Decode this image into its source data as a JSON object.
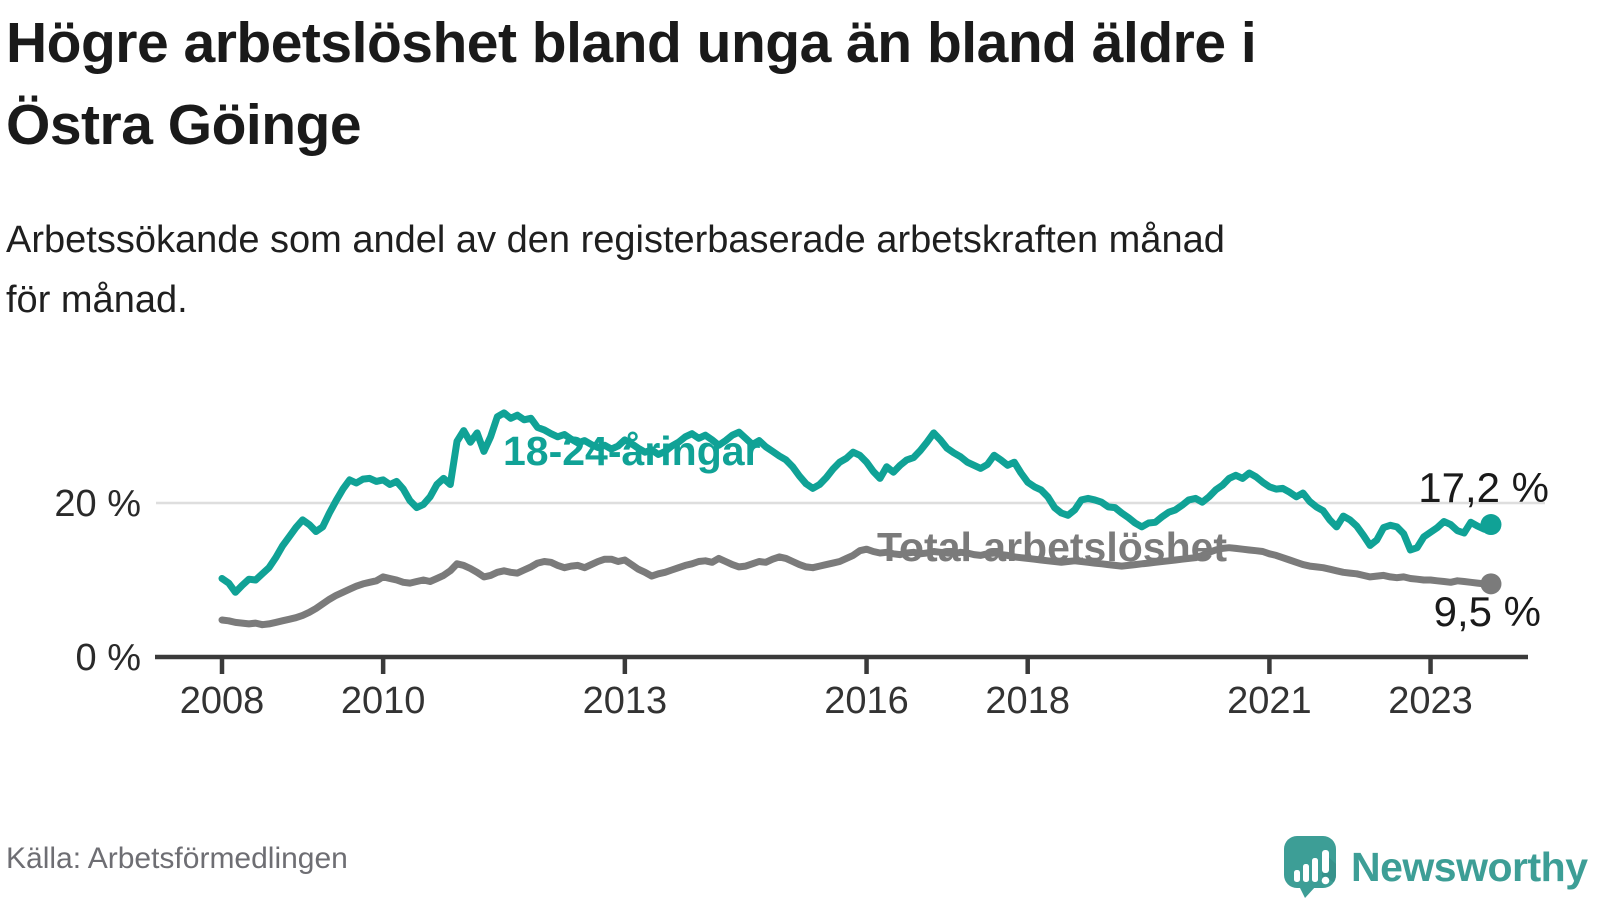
{
  "chart_data": {
    "type": "line",
    "title": "Högre arbetslöshet bland unga än bland äldre i Östra Göinge",
    "subtitle": "Arbetssökande som andel av den registerbaserade arbetskraften månad för månad.",
    "source": "Källa: Arbetsförmedlingen",
    "x_unit": "month",
    "x_start": "2008-01",
    "x_end": "2023-10",
    "x_ticks": [
      2008,
      2010,
      2013,
      2016,
      2018,
      2021,
      2023
    ],
    "y_ticks": [
      {
        "value": 0,
        "label": "0 %"
      },
      {
        "value": 20,
        "label": "20 %"
      }
    ],
    "y_gridline_at": 20,
    "ylim": [
      0,
      34
    ],
    "legend": "inline-labels-on-lines",
    "series": [
      {
        "name": "18-24-åringar",
        "slug": "youth",
        "color": "#10a296",
        "end_value": 17.2,
        "end_label": "17,2 %",
        "values": [
          10.2,
          9.6,
          8.4,
          9.3,
          10.1,
          10.0,
          10.8,
          11.6,
          12.9,
          14.4,
          15.6,
          16.8,
          17.8,
          17.2,
          16.3,
          16.9,
          18.7,
          20.3,
          21.8,
          23.0,
          22.6,
          23.1,
          23.2,
          22.8,
          23.0,
          22.4,
          22.8,
          21.8,
          20.3,
          19.4,
          19.8,
          20.8,
          22.4,
          23.2,
          22.4,
          28.0,
          29.4,
          27.9,
          29.1,
          26.7,
          28.6,
          31.2,
          31.7,
          31.0,
          31.4,
          30.8,
          31.0,
          29.8,
          29.5,
          29.0,
          28.6,
          28.9,
          28.3,
          27.8,
          28.1,
          27.6,
          27.2,
          27.5,
          27.0,
          27.4,
          28.2,
          27.7,
          27.1,
          26.6,
          26.9,
          26.3,
          26.7,
          27.4,
          27.9,
          28.6,
          29.0,
          28.4,
          28.8,
          28.2,
          27.5,
          28.1,
          28.8,
          29.2,
          28.4,
          27.6,
          28.1,
          27.3,
          26.7,
          26.1,
          25.6,
          24.7,
          23.5,
          22.5,
          21.9,
          22.4,
          23.3,
          24.4,
          25.3,
          25.8,
          26.6,
          26.2,
          25.3,
          24.1,
          23.2,
          24.7,
          24.0,
          24.9,
          25.6,
          25.9,
          26.8,
          27.9,
          29.1,
          28.2,
          27.1,
          26.5,
          26.0,
          25.3,
          24.9,
          24.5,
          25.0,
          26.2,
          25.6,
          24.9,
          25.3,
          23.9,
          22.7,
          22.1,
          21.7,
          20.8,
          19.4,
          18.7,
          18.4,
          19.1,
          20.4,
          20.6,
          20.4,
          20.1,
          19.5,
          19.4,
          18.7,
          18.1,
          17.4,
          16.9,
          17.4,
          17.5,
          18.2,
          18.8,
          19.1,
          19.7,
          20.4,
          20.6,
          20.1,
          20.8,
          21.7,
          22.3,
          23.2,
          23.6,
          23.2,
          23.9,
          23.4,
          22.7,
          22.1,
          21.8,
          21.9,
          21.4,
          20.8,
          21.3,
          20.2,
          19.5,
          19.0,
          17.8,
          16.9,
          18.3,
          17.8,
          17.0,
          15.8,
          14.5,
          15.2,
          16.8,
          17.1,
          16.9,
          16.0,
          13.9,
          14.2,
          15.6,
          16.2,
          16.8,
          17.6,
          17.2,
          16.4,
          16.1,
          17.5,
          17.0,
          16.6,
          17.2
        ]
      },
      {
        "name": "Total arbetslöshet",
        "slug": "total",
        "color": "#7b7b7b",
        "end_value": 9.5,
        "end_label": "9,5 %",
        "values": [
          4.8,
          4.7,
          4.5,
          4.4,
          4.3,
          4.4,
          4.2,
          4.3,
          4.5,
          4.7,
          4.9,
          5.1,
          5.4,
          5.8,
          6.3,
          6.9,
          7.5,
          8.0,
          8.4,
          8.8,
          9.2,
          9.5,
          9.7,
          9.9,
          10.4,
          10.2,
          10.0,
          9.7,
          9.6,
          9.8,
          10.0,
          9.8,
          10.2,
          10.6,
          11.2,
          12.1,
          11.9,
          11.5,
          11.0,
          10.4,
          10.6,
          11.0,
          11.2,
          11.0,
          10.9,
          11.3,
          11.7,
          12.2,
          12.4,
          12.3,
          11.9,
          11.6,
          11.8,
          11.9,
          11.6,
          12.0,
          12.4,
          12.7,
          12.7,
          12.4,
          12.6,
          12.0,
          11.4,
          11.0,
          10.5,
          10.8,
          11.0,
          11.3,
          11.6,
          11.9,
          12.1,
          12.4,
          12.5,
          12.3,
          12.8,
          12.4,
          12.0,
          11.7,
          11.8,
          12.1,
          12.4,
          12.3,
          12.7,
          13.0,
          12.8,
          12.4,
          12.0,
          11.7,
          11.6,
          11.8,
          12.0,
          12.2,
          12.4,
          12.8,
          13.2,
          13.8,
          14.0,
          13.7,
          13.5,
          13.6,
          13.4,
          13.3,
          13.5,
          13.6,
          13.4,
          13.5,
          13.7,
          13.6,
          13.5,
          13.4,
          13.6,
          13.5,
          13.3,
          13.2,
          13.4,
          13.5,
          13.3,
          13.2,
          13.0,
          12.9,
          12.8,
          12.7,
          12.6,
          12.5,
          12.4,
          12.3,
          12.4,
          12.5,
          12.4,
          12.3,
          12.2,
          12.1,
          12.0,
          11.9,
          11.8,
          11.9,
          12.0,
          12.1,
          12.2,
          12.3,
          12.4,
          12.5,
          12.6,
          12.7,
          12.8,
          12.9,
          13.2,
          13.6,
          13.9,
          14.1,
          14.2,
          14.1,
          14.0,
          13.9,
          13.8,
          13.7,
          13.4,
          13.2,
          12.9,
          12.6,
          12.3,
          12.0,
          11.8,
          11.7,
          11.6,
          11.4,
          11.2,
          11.0,
          10.9,
          10.8,
          10.6,
          10.4,
          10.5,
          10.6,
          10.4,
          10.3,
          10.4,
          10.2,
          10.1,
          10.0,
          10.0,
          9.9,
          9.8,
          9.7,
          9.9,
          9.8,
          9.7,
          9.6,
          9.5,
          9.5
        ]
      }
    ]
  },
  "branding": {
    "brand_name": "Newsworthy",
    "brand_color": "#3d9e96",
    "icon": "newsworthy-chart-bubble"
  },
  "colors": {
    "youth_line": "#10a296",
    "total_line": "#7b7b7b",
    "grid": "#dedede",
    "axis": "#3a3a3a",
    "tick_text": "#333333",
    "value_text": "#1a1a1a",
    "muted_text": "#6e6e73"
  }
}
